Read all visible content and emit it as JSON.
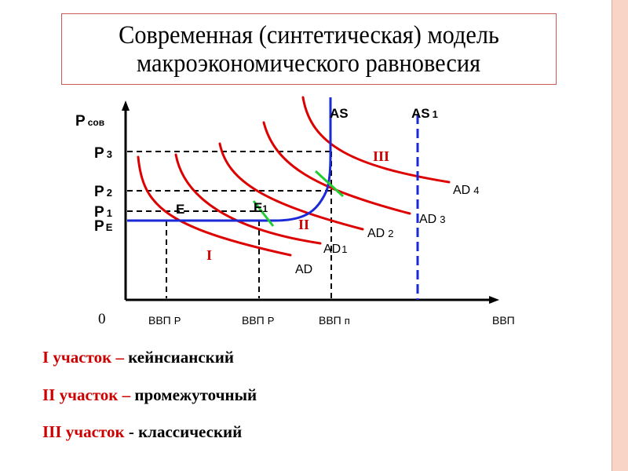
{
  "title": {
    "line1": "Современная (синтетическая) модель",
    "line2": "макроэкономического равновесия"
  },
  "diagram": {
    "y_axis_label": {
      "main": "P",
      "sub": "сов"
    },
    "origin_label": "0",
    "x_axis_label": "ВВП",
    "price_levels": [
      {
        "main": "P",
        "sub": "3"
      },
      {
        "main": "P",
        "sub": "2"
      },
      {
        "main": "P",
        "sub": "1"
      },
      {
        "main": "P",
        "sub": "E"
      }
    ],
    "x_ticks": [
      {
        "main": "ВВП",
        "sub": "Р"
      },
      {
        "main": "ВВП",
        "sub": "Р"
      },
      {
        "main": "ВВП",
        "sub": "п"
      }
    ],
    "supply_labels": [
      {
        "main": "AS",
        "sub": ""
      },
      {
        "main": "AS",
        "sub": "1"
      }
    ],
    "demand_labels": [
      {
        "main": "AD",
        "sub": ""
      },
      {
        "main": "AD",
        "sub": "1"
      },
      {
        "main": "AD",
        "sub": "2"
      },
      {
        "main": "AD",
        "sub": "3"
      },
      {
        "main": "AD",
        "sub": "4"
      }
    ],
    "equilibrium_points": [
      {
        "main": "E",
        "sub": ""
      },
      {
        "main": "E",
        "sub": "1"
      }
    ],
    "segments": [
      "I",
      "II",
      "III"
    ],
    "colors": {
      "demand": "#dd0000",
      "supply": "#1a2ad6",
      "tangent": "#22cc33",
      "segment_labels": "#cc0000",
      "axes": "#000000"
    }
  },
  "legend": [
    {
      "segment": "I участок",
      "dash": "–",
      "name": "кейнсианский"
    },
    {
      "segment": "II участок",
      "dash": "–",
      "name": "промежуточный"
    },
    {
      "segment": "III участок",
      "dash": "-",
      "name": "классический"
    }
  ]
}
